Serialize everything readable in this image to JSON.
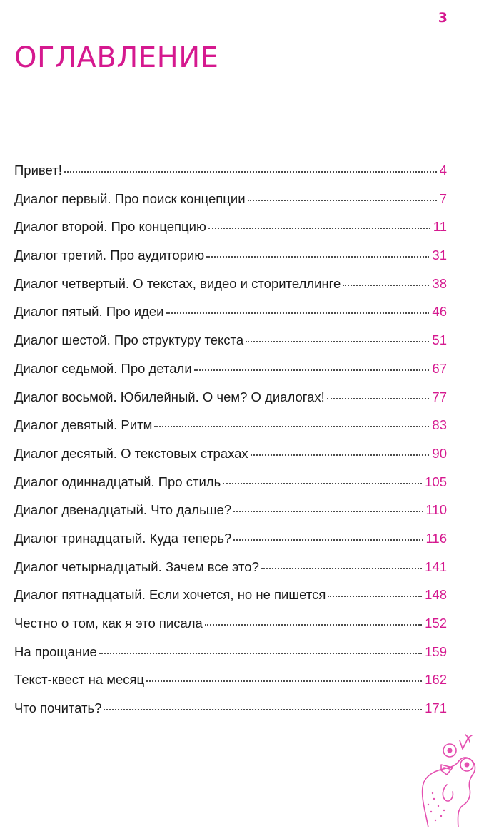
{
  "header": {
    "page_number": "3",
    "title": "ОГЛАВЛЕНИЕ"
  },
  "toc": {
    "entries": [
      {
        "title": "Привет!",
        "page": "4"
      },
      {
        "title": "Диалог первый. Про поиск концепции",
        "page": "7"
      },
      {
        "title": "Диалог второй. Про концепцию",
        "page": "11"
      },
      {
        "title": "Диалог третий. Про аудиторию",
        "page": "31"
      },
      {
        "title": "Диалог четвертый. О текстах, видео и сторителлинге",
        "page": "38"
      },
      {
        "title": "Диалог пятый. Про идеи",
        "page": "46"
      },
      {
        "title": "Диалог шестой. Про структуру текста",
        "page": "51"
      },
      {
        "title": "Диалог седьмой. Про детали",
        "page": "67"
      },
      {
        "title": "Диалог восьмой. Юбилейный. О чем? О диалогах!",
        "page": "77"
      },
      {
        "title": "Диалог девятый. Ритм",
        "page": "83"
      },
      {
        "title": "Диалог десятый. О текстовых страхах",
        "page": "90"
      },
      {
        "title": "Диалог одиннадцатый. Про стиль",
        "page": "105"
      },
      {
        "title": "Диалог двенадцатый. Что дальше?",
        "page": "110"
      },
      {
        "title": "Диалог тринадцатый. Куда теперь?",
        "page": "116"
      },
      {
        "title": "Диалог четырнадцатый. Зачем все это?",
        "page": "141"
      },
      {
        "title": "Диалог пятнадцатый. Если хочется, но не пишется",
        "page": "148"
      },
      {
        "title": "Честно о том, как я это писала",
        "page": "152"
      },
      {
        "title": "На прощание",
        "page": "159"
      },
      {
        "title": "Текст-квест на месяц",
        "page": "162"
      },
      {
        "title": "Что почитать?",
        "page": "171"
      }
    ]
  },
  "decoration": {
    "icon": "pink-doodle-creature-icon"
  },
  "colors": {
    "accent": "#d5198f",
    "text": "#1a1a1a",
    "background": "#ffffff"
  }
}
